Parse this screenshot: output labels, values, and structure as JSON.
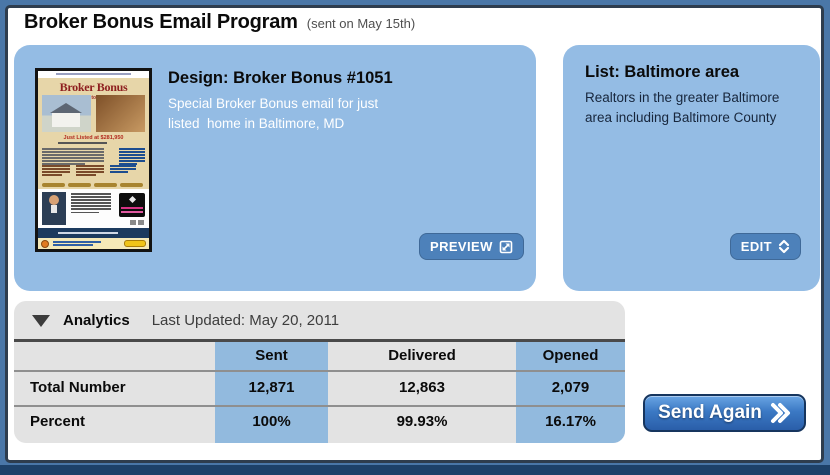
{
  "window": {
    "frame_color": "#4a77a8",
    "frame_border_color": "#2e3d4e",
    "bottom_bar_color": "#1d4169"
  },
  "header": {
    "title": "Broker Bonus Email Program",
    "sent_note": "(sent on May 15th)"
  },
  "design": {
    "heading": "Design: Broker Bonus #1051",
    "description": "Special Broker Bonus email for just\nlisted  home in Baltimore, MD",
    "preview_label": "PREVIEW",
    "panel_color": "#94bce4",
    "button_color": "#4d81ba"
  },
  "thumbnail": {
    "title": "Broker Bonus",
    "subtitle": "$1,000 Bonus to Selling Agent",
    "listing_line": "Just Listed at $281,950",
    "agent_name": "Craig Simpson"
  },
  "list": {
    "heading": "List: Baltimore area",
    "description": "Realtors in the greater Baltimore\narea including Baltimore County",
    "edit_label": "EDIT"
  },
  "analytics": {
    "heading": "Analytics",
    "last_updated": "Last Updated: May 20, 2011",
    "table": {
      "columns": [
        "Sent",
        "Delivered",
        "Opened"
      ],
      "rows": [
        {
          "label": "Total Number",
          "values": [
            "12,871",
            "12,863",
            "2,079"
          ]
        },
        {
          "label": "Percent",
          "values": [
            "100%",
            "99.93%",
            "16.17%"
          ]
        }
      ],
      "highlight_color": "#92bade",
      "background_color": "#e3e3e3"
    }
  },
  "actions": {
    "send_again_label": "Send Again"
  }
}
